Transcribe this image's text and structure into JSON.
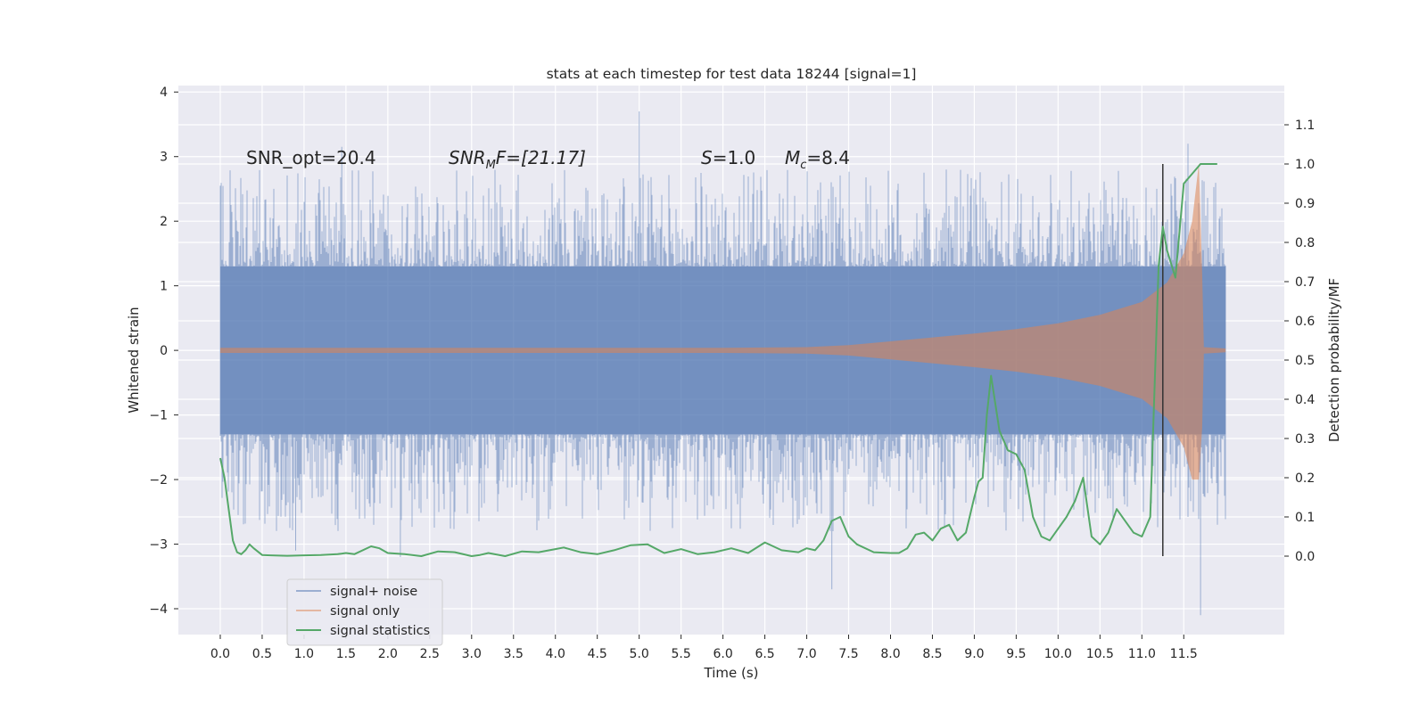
{
  "chart_data": {
    "type": "line",
    "title": "stats at each timestep for test data 18244 [signal=1]",
    "xlabel": "Time (s)",
    "ylabel": "Whitened strain",
    "ylabel_right": "Detection probability/MF",
    "xlim": [
      -0.5,
      12.7
    ],
    "ylim": [
      -4.4,
      4.1
    ],
    "ylim_right": [
      -0.2,
      1.2
    ],
    "x_ticks": [
      0.0,
      0.5,
      1.0,
      1.5,
      2.0,
      2.5,
      3.0,
      3.5,
      4.0,
      4.5,
      5.0,
      5.5,
      6.0,
      6.5,
      7.0,
      7.5,
      8.0,
      8.5,
      9.0,
      9.5,
      10.0,
      10.5,
      11.0,
      11.5
    ],
    "x_tick_labels": [
      "0.0",
      "0.5",
      "1.0",
      "1.5",
      "2.0",
      "2.5",
      "3.0",
      "3.5",
      "4.0",
      "4.5",
      "5.0",
      "5.5",
      "6.0",
      "6.5",
      "7.0",
      "7.5",
      "8.0",
      "8.5",
      "9.0",
      "9.5",
      "10.0",
      "10.5",
      "11.0",
      "11.5"
    ],
    "y_ticks": [
      -4,
      -3,
      -2,
      -1,
      0,
      1,
      2,
      3,
      4
    ],
    "y_tick_labels": [
      "−4",
      "−3",
      "−2",
      "−1",
      "0",
      "1",
      "2",
      "3",
      "4"
    ],
    "y_right_ticks": [
      0.0,
      0.1,
      0.2,
      0.3,
      0.4,
      0.5,
      0.6,
      0.7,
      0.8,
      0.9,
      1.0,
      1.1
    ],
    "y_right_tick_labels": [
      "0.0",
      "0.1",
      "0.2",
      "0.3",
      "0.4",
      "0.5",
      "0.6",
      "0.7",
      "0.8",
      "0.9",
      "1.0",
      "1.1"
    ],
    "grid": true,
    "legend_position": "lower-left",
    "annotations": {
      "snr_opt": "SNR_opt=20.4",
      "snr_mf_main": "SNR",
      "snr_mf_sub": "M",
      "snr_mf_rest": "F=[21.17]",
      "s_main": "S",
      "s_rest": "=1.0",
      "mc_main": "M",
      "mc_sub": "c",
      "mc_rest": "=8.4"
    },
    "series": [
      {
        "name": "signal+ noise",
        "color": "#4c72b0",
        "kind": "noise band",
        "t_range": [
          0.0,
          12.0
        ],
        "band_1sigma": 1.0,
        "peak_max": 3.7,
        "peak_min": -4.1
      },
      {
        "name": "signal only",
        "color": "#dd8452",
        "kind": "chirp envelope",
        "envelope_points": [
          [
            0.0,
            0.04
          ],
          [
            2.0,
            0.04
          ],
          [
            4.0,
            0.04
          ],
          [
            6.0,
            0.04
          ],
          [
            7.0,
            0.05
          ],
          [
            7.5,
            0.08
          ],
          [
            8.0,
            0.14
          ],
          [
            8.5,
            0.2
          ],
          [
            9.0,
            0.26
          ],
          [
            9.5,
            0.33
          ],
          [
            10.0,
            0.42
          ],
          [
            10.5,
            0.55
          ],
          [
            11.0,
            0.75
          ],
          [
            11.3,
            1.05
          ],
          [
            11.5,
            1.5
          ],
          [
            11.6,
            2.0
          ],
          [
            11.68,
            2.9
          ],
          [
            11.72,
            1.2
          ],
          [
            11.74,
            0.05
          ],
          [
            12.0,
            0.03
          ]
        ],
        "min_value": -2.0,
        "max_value": 2.9
      },
      {
        "name": "signal statistics",
        "color": "#55a868",
        "axis": "right",
        "x": [
          0.0,
          0.05,
          0.1,
          0.15,
          0.2,
          0.25,
          0.3,
          0.35,
          0.4,
          0.5,
          0.6,
          0.8,
          1.0,
          1.2,
          1.4,
          1.5,
          1.6,
          1.8,
          1.9,
          2.0,
          2.2,
          2.4,
          2.6,
          2.8,
          3.0,
          3.1,
          3.2,
          3.4,
          3.6,
          3.8,
          4.0,
          4.1,
          4.3,
          4.5,
          4.7,
          4.9,
          5.1,
          5.3,
          5.5,
          5.7,
          5.9,
          6.1,
          6.3,
          6.5,
          6.7,
          6.9,
          7.0,
          7.1,
          7.2,
          7.3,
          7.4,
          7.5,
          7.6,
          7.8,
          8.0,
          8.1,
          8.2,
          8.3,
          8.4,
          8.5,
          8.6,
          8.7,
          8.8,
          8.9,
          9.0,
          9.05,
          9.1,
          9.15,
          9.2,
          9.3,
          9.4,
          9.5,
          9.6,
          9.7,
          9.8,
          9.9,
          10.0,
          10.1,
          10.2,
          10.3,
          10.4,
          10.5,
          10.6,
          10.7,
          10.8,
          10.9,
          11.0,
          11.1,
          11.2,
          11.25,
          11.3,
          11.4,
          11.5,
          11.7,
          11.9
        ],
        "values": [
          0.25,
          0.2,
          0.12,
          0.04,
          0.01,
          0.005,
          0.015,
          0.03,
          0.02,
          0.003,
          0.002,
          0.001,
          0.002,
          0.003,
          0.005,
          0.008,
          0.005,
          0.025,
          0.02,
          0.008,
          0.005,
          0.0,
          0.012,
          0.01,
          0.0,
          0.003,
          0.008,
          0.0,
          0.012,
          0.01,
          0.018,
          0.022,
          0.01,
          0.005,
          0.015,
          0.028,
          0.03,
          0.008,
          0.018,
          0.005,
          0.01,
          0.02,
          0.008,
          0.035,
          0.015,
          0.01,
          0.02,
          0.015,
          0.04,
          0.09,
          0.1,
          0.05,
          0.03,
          0.01,
          0.008,
          0.008,
          0.02,
          0.055,
          0.06,
          0.04,
          0.07,
          0.08,
          0.04,
          0.06,
          0.15,
          0.19,
          0.2,
          0.36,
          0.46,
          0.32,
          0.27,
          0.26,
          0.22,
          0.1,
          0.05,
          0.04,
          0.07,
          0.1,
          0.14,
          0.2,
          0.05,
          0.03,
          0.06,
          0.12,
          0.09,
          0.06,
          0.05,
          0.1,
          0.74,
          0.84,
          0.78,
          0.71,
          0.95,
          1.0,
          1.0
        ],
        "mf_marker_x": 11.25,
        "mf_marker_range": [
          0.0,
          1.0
        ]
      }
    ],
    "mf_marker_color": "#333333"
  }
}
